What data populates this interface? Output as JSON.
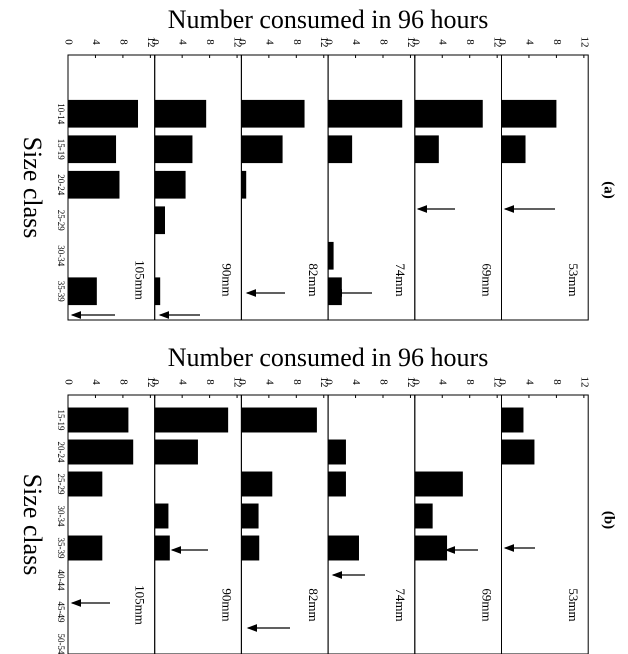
{
  "chart_data": [
    {
      "type": "bar",
      "title": "Number consumed in 96 hours",
      "x_axis_label": "Size class",
      "tag": "(a)",
      "categories": [
        "10-14",
        "15-19",
        "20-24",
        "25-29",
        "30-34",
        "35-39"
      ],
      "xlim": [
        0,
        12
      ],
      "xticks": [
        0,
        4,
        8,
        12
      ],
      "series": [
        {
          "name": "105mm",
          "color": "#000000",
          "values": [
            10.2,
            7,
            7.5,
            0,
            0,
            4.2
          ]
        },
        {
          "name": "90mm",
          "color": "#000000",
          "values": [
            7.5,
            5.5,
            4.5,
            1.5,
            0,
            0.8
          ]
        },
        {
          "name": "82mm",
          "color": "#000000",
          "values": [
            9.2,
            6,
            0.7,
            0,
            0,
            0
          ]
        },
        {
          "name": "74mm",
          "color": "#000000",
          "values": [
            10.8,
            3.5,
            0,
            0,
            0.8,
            2
          ]
        },
        {
          "name": "69mm",
          "color": "#000000",
          "values": [
            9.9,
            3.5,
            0,
            0,
            0,
            0
          ]
        },
        {
          "name": "53mm",
          "color": "#000000",
          "values": [
            8,
            3.5,
            0,
            0,
            0,
            0
          ]
        }
      ]
    },
    {
      "type": "bar",
      "title": "Number consumed in 96 hours",
      "x_axis_label": "Size class",
      "tag": "(b)",
      "categories": [
        "15-19",
        "20-24",
        "25-29",
        "30-34",
        "35-39",
        "40-44",
        "45-49",
        "50-54"
      ],
      "xlim": [
        0,
        12
      ],
      "xticks": [
        0,
        4,
        8,
        12
      ],
      "series": [
        {
          "name": "105mm",
          "color": "#000000",
          "values": [
            8.8,
            9.5,
            5,
            0,
            5,
            0,
            0,
            0
          ]
        },
        {
          "name": "90mm",
          "color": "#000000",
          "values": [
            10.7,
            6.3,
            0,
            2,
            2.2,
            0,
            0,
            0
          ]
        },
        {
          "name": "82mm",
          "color": "#000000",
          "values": [
            11,
            0,
            4.5,
            2.5,
            2.6,
            0,
            0,
            0
          ]
        },
        {
          "name": "74mm",
          "color": "#000000",
          "values": [
            0,
            2.6,
            2.6,
            0,
            4.5,
            0,
            0,
            0
          ]
        },
        {
          "name": "69mm",
          "color": "#000000",
          "values": [
            0,
            0,
            7,
            2.6,
            4.7,
            0,
            0,
            0
          ]
        },
        {
          "name": "53mm",
          "color": "#000000",
          "values": [
            3.2,
            4.8,
            0,
            0,
            0,
            0,
            0,
            0
          ]
        }
      ]
    }
  ]
}
